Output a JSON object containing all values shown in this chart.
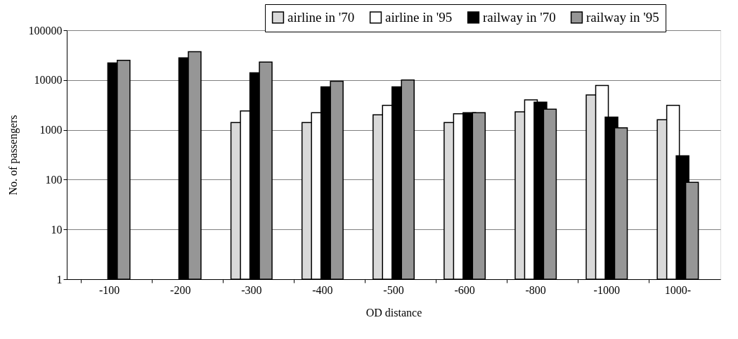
{
  "chart_data": {
    "type": "bar",
    "xlabel": "OD distance",
    "ylabel": "No. of passengers",
    "categories": [
      "-100",
      "-200",
      "-300",
      "-400",
      "-500",
      "-600",
      "-800",
      "-1000",
      "1000-"
    ],
    "series": [
      {
        "name": "airline in '70",
        "color": "#d9d9d9",
        "values": [
          null,
          null,
          1400,
          1400,
          2000,
          1400,
          2300,
          5000,
          1600
        ]
      },
      {
        "name": "airline in '95",
        "color": "#ffffff",
        "values": [
          null,
          null,
          2400,
          2200,
          3100,
          2100,
          4000,
          7800,
          3100
        ]
      },
      {
        "name": "railway in '70",
        "color": "#000000",
        "values": [
          22000,
          28000,
          14000,
          7300,
          7300,
          2200,
          3600,
          1800,
          300
        ]
      },
      {
        "name": "railway in '95",
        "color": "#969696",
        "values": [
          25000,
          37000,
          23000,
          9500,
          10000,
          2200,
          2600,
          1100,
          88
        ]
      }
    ],
    "log": "y",
    "ylim": [
      1,
      100000
    ],
    "yticks": [
      1,
      10,
      100,
      1000,
      10000,
      100000
    ],
    "grid": "y",
    "legend": "top right"
  }
}
